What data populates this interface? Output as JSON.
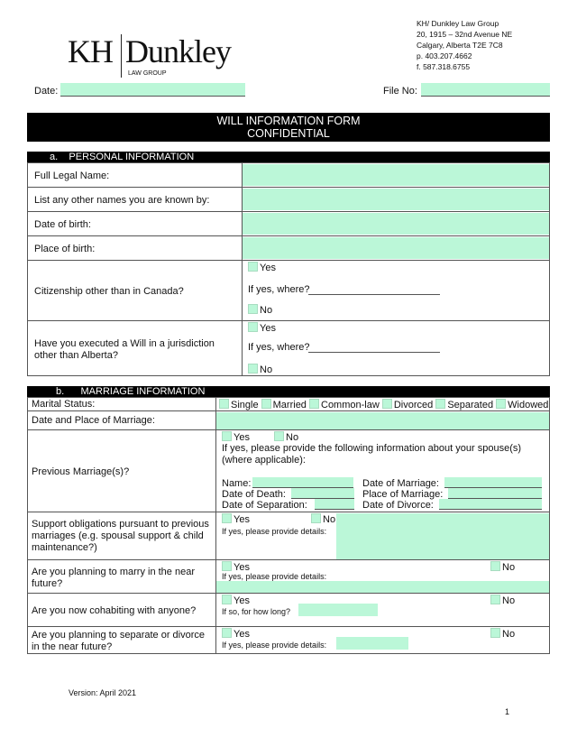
{
  "logo": {
    "left": "KH",
    "right": "Dunkley",
    "sub": "LAW GROUP"
  },
  "address": [
    "KH/ Dunkley Law Group",
    "20, 1915 – 32nd Avenue NE",
    "Calgary, Alberta T2E 7C8",
    "p. 403.207.4662",
    "f.  587.318.6755"
  ],
  "date_label": "Date:",
  "date_value": "",
  "file_label": "File No:",
  "file_value": "",
  "title": [
    "WILL INFORMATION FORM",
    "CONFIDENTIAL"
  ],
  "section_a": {
    "label": "a.    PERSONAL INFORMATION",
    "rows": [
      "Full Legal Name:",
      "List any other names you are known by:",
      "Date of birth:",
      "Place of birth:"
    ],
    "citizenship": {
      "q": "Citizenship other than in Canada?",
      "yes": "Yes",
      "where": "If yes, where?",
      "no": "No"
    },
    "will": {
      "q": "Have you executed a Will in a jurisdiction other than Alberta?",
      "yes": "Yes",
      "where": "If yes, where?",
      "no": "No"
    }
  },
  "section_b": {
    "label": "b.      MARRIAGE INFORMATION",
    "marital_status": {
      "q": "Marital Status:",
      "options": [
        "Single",
        "Married",
        "Common-law",
        "Divorced",
        "Separated",
        "Widowed"
      ]
    },
    "date_place": "Date and Place of Marriage:",
    "previous": {
      "q": "Previous Marriage(s)?",
      "yes": "Yes",
      "no": "No",
      "info": "If yes, please provide the following information about your spouse(s) (where applicable):",
      "name": "Name:",
      "date_of_marriage": "Date of Marriage:",
      "date_of_death": "Date of Death:",
      "place_of_marriage": "Place of Marriage:",
      "date_of_separation": "Date of Separation:",
      "date_of_divorce": "Date of Divorce:"
    },
    "support": {
      "q": "Support obligations pursuant to previous marriages (e.g. spousal support & child maintenance?)",
      "yes": "Yes",
      "no": "No",
      "details": "If yes, please provide details:"
    },
    "marry": {
      "q": "Are you planning to marry in the near future?",
      "yes": "Yes",
      "no": "No",
      "details": "If yes, please provide details:"
    },
    "cohab": {
      "q": "Are you now cohabiting with anyone?",
      "yes": "Yes",
      "no": "No",
      "details": "If so, for how long?"
    },
    "separate": {
      "q": "Are you planning to separate or divorce in the near future?",
      "yes": "Yes",
      "no": "No",
      "details": "If yes, please provide details:"
    }
  },
  "footer": {
    "version": "Version: April 2021",
    "page": "1"
  }
}
